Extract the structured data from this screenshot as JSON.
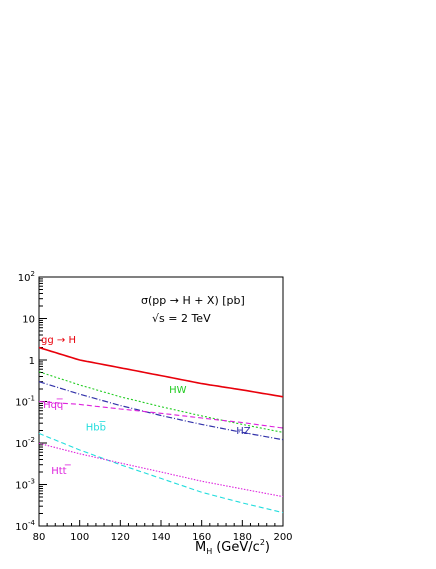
{
  "chart_data": {
    "type": "line",
    "title": "σ(pp → H + X) [pb]",
    "subtitle": "√s = 2 TeV",
    "xlabel": "M_H (GeV/c^2)",
    "ylabel": "",
    "xlim": [
      80,
      200
    ],
    "ylim": [
      0.0001,
      100
    ],
    "yscale": "log",
    "grid": false,
    "x_ticks": [
      80,
      100,
      120,
      140,
      160,
      180,
      200
    ],
    "y_ticks": [
      {
        "base": "10",
        "exp": "-4",
        "value": 0.0001
      },
      {
        "base": "10",
        "exp": "-3",
        "value": 0.001
      },
      {
        "base": "10",
        "exp": "-2",
        "value": 0.01
      },
      {
        "base": "10",
        "exp": "-1",
        "value": 0.1
      },
      {
        "base": "1",
        "exp": "",
        "value": 1
      },
      {
        "base": "10",
        "exp": "",
        "value": 10
      },
      {
        "base": "10",
        "exp": "2",
        "value": 100
      }
    ],
    "series": [
      {
        "name": "gg → H",
        "color": "#e8000b",
        "dash": "solid",
        "width": 1.6,
        "label_pos": [
          81,
          2.6
        ],
        "x": [
          80,
          100,
          120,
          140,
          160,
          180,
          200
        ],
        "y": [
          2.0,
          1.0,
          0.65,
          0.42,
          0.27,
          0.19,
          0.13
        ]
      },
      {
        "name": "HW",
        "color": "#22cc22",
        "dash": "2,2",
        "width": 1.1,
        "label_pos": [
          144,
          0.16
        ],
        "x": [
          80,
          100,
          120,
          140,
          160,
          180,
          200
        ],
        "y": [
          0.52,
          0.25,
          0.13,
          0.075,
          0.045,
          0.028,
          0.018
        ]
      },
      {
        "name": "HZ",
        "color": "#3333aa",
        "dash": "6,2,1,2",
        "width": 1.2,
        "label_pos": [
          177,
          0.0165
        ],
        "x": [
          80,
          100,
          120,
          140,
          160,
          180,
          200
        ],
        "y": [
          0.3,
          0.15,
          0.08,
          0.046,
          0.028,
          0.018,
          0.012
        ]
      },
      {
        "name": "Hqq",
        "color": "#dd22dd",
        "dash": "5,3",
        "width": 1.1,
        "label_pos": [
          82,
          0.07
        ],
        "x": [
          80,
          100,
          120,
          140,
          160,
          180,
          200
        ],
        "y": [
          0.1,
          0.085,
          0.066,
          0.052,
          0.04,
          0.031,
          0.023
        ]
      },
      {
        "name": "Hbb",
        "color": "#22dddd",
        "dash": "5,3",
        "width": 1.1,
        "label_pos": [
          103,
          0.02
        ],
        "x": [
          80,
          100,
          120,
          140,
          160,
          180,
          200
        ],
        "y": [
          0.017,
          0.0068,
          0.003,
          0.0014,
          0.00065,
          0.00036,
          0.00021
        ]
      },
      {
        "name": "Htt",
        "color": "#dd22dd",
        "dash": "1.5,1.5",
        "width": 1.1,
        "label_pos": [
          86,
          0.0018
        ],
        "x": [
          80,
          100,
          120,
          140,
          160,
          180,
          200
        ],
        "y": [
          0.0098,
          0.0055,
          0.0033,
          0.002,
          0.0012,
          0.00078,
          0.00051
        ]
      }
    ]
  }
}
